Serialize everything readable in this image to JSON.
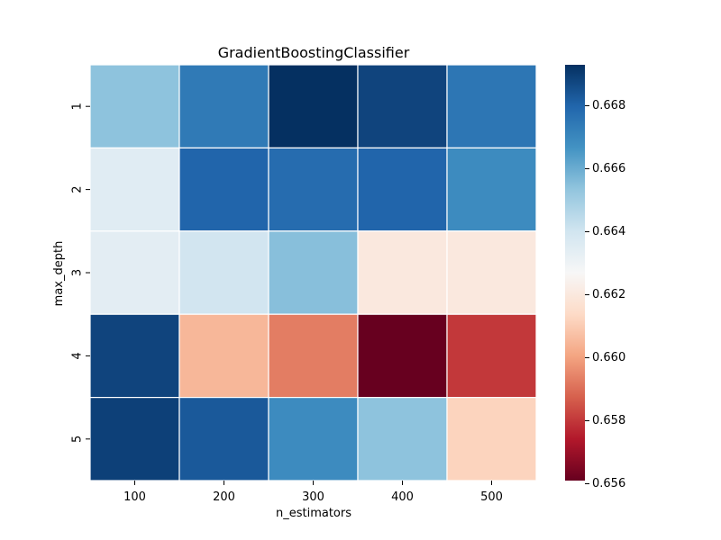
{
  "chart_data": {
    "type": "heatmap",
    "title": "GradientBoostingClassifier",
    "xlabel": "n_estimators",
    "ylabel": "max_depth",
    "x_categories": [
      "100",
      "200",
      "300",
      "400",
      "500"
    ],
    "y_categories": [
      "1",
      "2",
      "3",
      "4",
      "5"
    ],
    "values": [
      [
        0.6654,
        0.6674,
        0.6693,
        0.6688,
        0.6675
      ],
      [
        0.6635,
        0.668,
        0.6678,
        0.668,
        0.6669
      ],
      [
        0.6634,
        0.664,
        0.6655,
        0.662,
        0.662
      ],
      [
        0.6688,
        0.6605,
        0.6593,
        0.6561,
        0.658
      ],
      [
        0.6689,
        0.6683,
        0.6669,
        0.6654,
        0.6612
      ]
    ],
    "colorbar": {
      "vmin": 0.6561,
      "vmax": 0.6693,
      "ticks": [
        "0.656",
        "0.658",
        "0.660",
        "0.662",
        "0.664",
        "0.666",
        "0.668"
      ],
      "colormap": "RdBu"
    },
    "grid": false,
    "cell_border_color": "#ffffff"
  }
}
